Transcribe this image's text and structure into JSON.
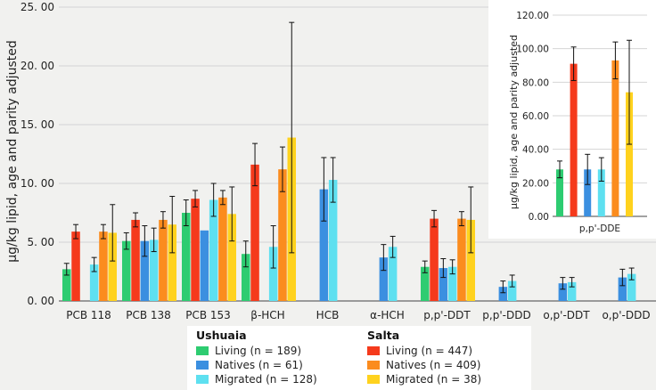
{
  "chart_data": {
    "type": "bar",
    "main": {
      "categories": [
        "PCB 118",
        "PCB 138",
        "PCB 153",
        "β-HCH",
        "HCB",
        "α-HCH",
        "p,p'-DDT",
        "p,p'-DDD",
        "o,p'-DDT",
        "o,p'-DDD"
      ],
      "ylabel": "μg/kg lipid,  age and parity adjusted",
      "ylim": [
        0,
        25
      ],
      "yticks": [
        0,
        5,
        10,
        15,
        20,
        25
      ],
      "ytick_labels": [
        "0. 00",
        "5. 00",
        "10. 00",
        "15. 00",
        "20. 00",
        "25. 00"
      ],
      "series": [
        {
          "name": "Ushuaia Living",
          "color": "#2ecc71",
          "values": [
            2.7,
            5.1,
            7.5,
            4.0,
            null,
            null,
            2.9,
            null,
            null,
            null
          ],
          "err": [
            0.5,
            0.7,
            1.1,
            1.1,
            null,
            null,
            0.5,
            null,
            null,
            null
          ]
        },
        {
          "name": "Salta Living",
          "color": "#f53a1c",
          "values": [
            5.9,
            6.9,
            8.7,
            11.6,
            null,
            null,
            7.0,
            null,
            null,
            null
          ],
          "err": [
            0.6,
            0.6,
            0.7,
            1.8,
            null,
            null,
            0.7,
            null,
            null,
            null
          ]
        },
        {
          "name": "Ushuaia Natives",
          "color": "#3b8fe0",
          "values": [
            null,
            5.1,
            6.0,
            null,
            9.5,
            3.7,
            2.8,
            1.2,
            1.5,
            2.0
          ],
          "err": [
            null,
            1.3,
            null,
            null,
            2.7,
            1.1,
            0.8,
            0.5,
            0.5,
            0.7
          ]
        },
        {
          "name": "Ushuaia Migrated",
          "color": "#5ee0f0",
          "values": [
            3.1,
            5.2,
            8.6,
            4.6,
            10.3,
            4.6,
            2.9,
            1.7,
            1.6,
            2.3
          ],
          "err": [
            0.6,
            1.0,
            1.4,
            1.8,
            1.9,
            0.9,
            0.6,
            0.5,
            0.4,
            0.5
          ]
        },
        {
          "name": "Salta Natives",
          "color": "#fb8c1e",
          "values": [
            5.9,
            6.9,
            8.8,
            11.2,
            null,
            null,
            7.0,
            null,
            null,
            null
          ],
          "err": [
            0.6,
            0.7,
            0.6,
            1.9,
            null,
            null,
            0.6,
            null,
            null,
            null
          ]
        },
        {
          "name": "Salta Migrated",
          "color": "#ffd21e",
          "values": [
            5.8,
            6.5,
            7.4,
            13.9,
            null,
            null,
            6.9,
            null,
            null,
            null
          ],
          "err": [
            2.4,
            2.4,
            2.3,
            9.8,
            null,
            null,
            2.8,
            null,
            null,
            null
          ]
        }
      ]
    },
    "inset": {
      "categories": [
        "p,p'-DDE"
      ],
      "ylabel": "μg/kg lipid, age and parity adjusted",
      "ylim": [
        0,
        120
      ],
      "yticks": [
        0,
        20,
        40,
        60,
        80,
        100,
        120
      ],
      "ytick_labels": [
        "0.00",
        "20.00",
        "40.00",
        "60.00",
        "80.00",
        "100.00",
        "120.00"
      ],
      "series": [
        {
          "name": "Ushuaia Living",
          "color": "#2ecc71",
          "values": [
            28
          ],
          "err": [
            5
          ]
        },
        {
          "name": "Salta Living",
          "color": "#f53a1c",
          "values": [
            91
          ],
          "err": [
            10
          ]
        },
        {
          "name": "Ushuaia Natives",
          "color": "#3b8fe0",
          "values": [
            28
          ],
          "err": [
            9
          ]
        },
        {
          "name": "Ushuaia Migrated",
          "color": "#5ee0f0",
          "values": [
            28
          ],
          "err": [
            7
          ]
        },
        {
          "name": "Salta Natives",
          "color": "#fb8c1e",
          "values": [
            93
          ],
          "err": [
            11
          ]
        },
        {
          "name": "Salta Migrated",
          "color": "#ffd21e",
          "values": [
            74
          ],
          "err": [
            31
          ]
        }
      ]
    }
  },
  "legend": {
    "ushuaia": {
      "title": "Ushuaia",
      "items": [
        {
          "label": "Living (n = 189)",
          "color": "#2ecc71"
        },
        {
          "label": "Natives (n = 61)",
          "color": "#3b8fe0"
        },
        {
          "label": "Migrated (n = 128)",
          "color": "#5ee0f0"
        }
      ]
    },
    "salta": {
      "title": "Salta",
      "items": [
        {
          "label": "Living (n = 447)",
          "color": "#f53a1c"
        },
        {
          "label": "Natives (n = 409)",
          "color": "#fb8c1e"
        },
        {
          "label": "Migrated (n = 38)",
          "color": "#ffd21e"
        }
      ]
    }
  }
}
